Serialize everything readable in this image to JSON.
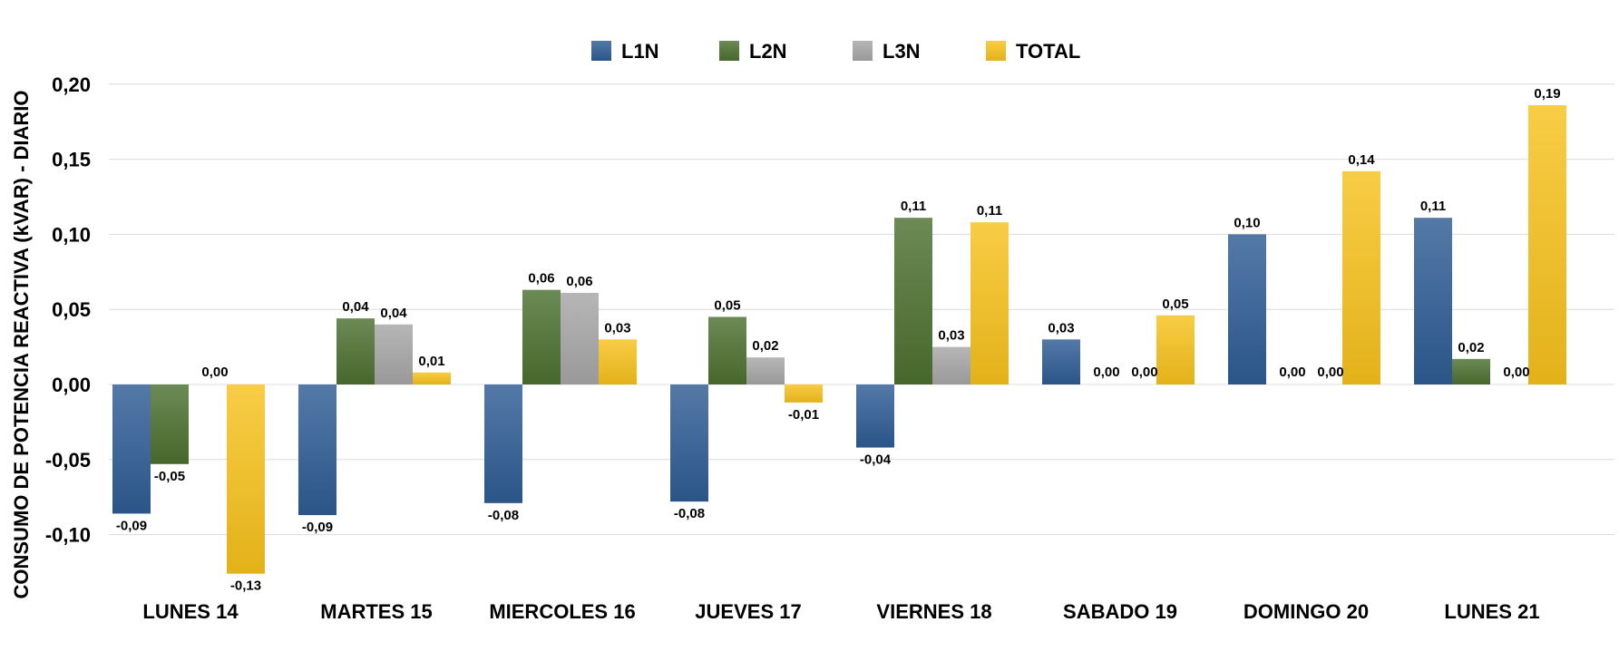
{
  "chart_data": {
    "type": "bar",
    "title": "",
    "xlabel": "",
    "ylabel": "CONSUMO DE POTENCIA REACTIVA (kVAR) - DIARIO",
    "ylim": [
      -0.15,
      0.2
    ],
    "yticks": [
      -0.1,
      -0.05,
      0.0,
      0.05,
      0.1,
      0.15,
      0.2
    ],
    "ytick_labels": [
      "-0,10",
      "-0,05",
      "0,00",
      "0,05",
      "0,10",
      "0,15",
      "0,20"
    ],
    "grid": true,
    "legend": "top-center",
    "categories": [
      "LUNES 14",
      "MARTES 15",
      "MIERCOLES 16",
      "JUEVES 17",
      "VIERNES 18",
      "SABADO 19",
      "DOMINGO 20",
      "LUNES 21"
    ],
    "series": [
      {
        "name": "L1N",
        "color": "#2E5C94",
        "values": [
          -0.086,
          -0.087,
          -0.079,
          -0.078,
          -0.042,
          0.03,
          0.1,
          0.111
        ],
        "labels": [
          "-0,09",
          "-0,09",
          "-0,08",
          "-0,08",
          "-0,04",
          "0,03",
          "0,10",
          "0,11"
        ]
      },
      {
        "name": "L2N",
        "color": "#4C7030",
        "values": [
          -0.053,
          0.044,
          0.063,
          0.045,
          0.111,
          0.0,
          0.0,
          0.017
        ],
        "labels": [
          "-0,05",
          "0,04",
          "0,06",
          "0,05",
          "0,11",
          "0,00",
          "0,00",
          "0,02"
        ]
      },
      {
        "name": "L3N",
        "color": "#A6A6A6",
        "values": [
          0.0,
          0.04,
          0.061,
          0.018,
          0.025,
          0.0,
          0.0,
          0.0
        ],
        "labels": [
          "0,00",
          "0,04",
          "0,06",
          "0,02",
          "0,03",
          "0,00",
          "0,00",
          "0,00"
        ]
      },
      {
        "name": "TOTAL",
        "color": "#F7C11C",
        "values": [
          -0.126,
          0.008,
          0.03,
          -0.012,
          0.108,
          0.046,
          0.142,
          0.186
        ],
        "labels": [
          "-0,13",
          "0,01",
          "0,03",
          "-0,01",
          "0,11",
          "0,05",
          "0,14",
          "0,19"
        ]
      }
    ]
  }
}
